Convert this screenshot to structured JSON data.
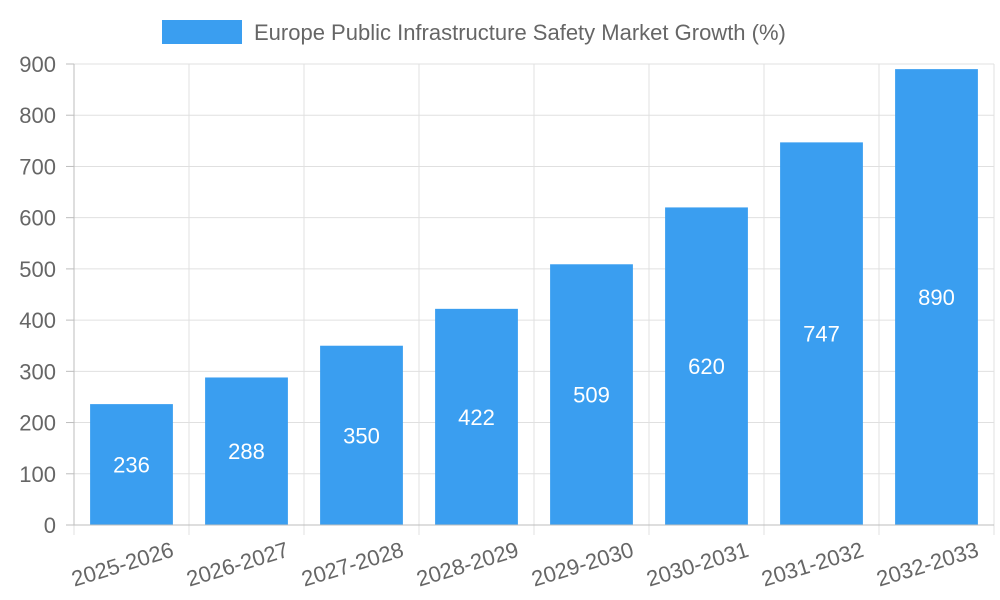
{
  "chart_data": {
    "type": "bar",
    "legend": {
      "label": "Europe Public Infrastructure Safety Market Growth (%)",
      "position": "top"
    },
    "categories": [
      "2025-2026",
      "2026-2027",
      "2027-2028",
      "2028-2029",
      "2029-2030",
      "2030-2031",
      "2031-2032",
      "2032-2033"
    ],
    "series": [
      {
        "name": "Europe Public Infrastructure Safety Market Growth (%)",
        "values": [
          236,
          288,
          350,
          422,
          509,
          620,
          747,
          890
        ],
        "color": "#3a9ef0"
      }
    ],
    "y_ticks": [
      "0",
      "100",
      "200",
      "300",
      "400",
      "500",
      "600",
      "700",
      "800",
      "900"
    ],
    "ylim": [
      0,
      900
    ],
    "grid": true,
    "data_labels": true
  }
}
